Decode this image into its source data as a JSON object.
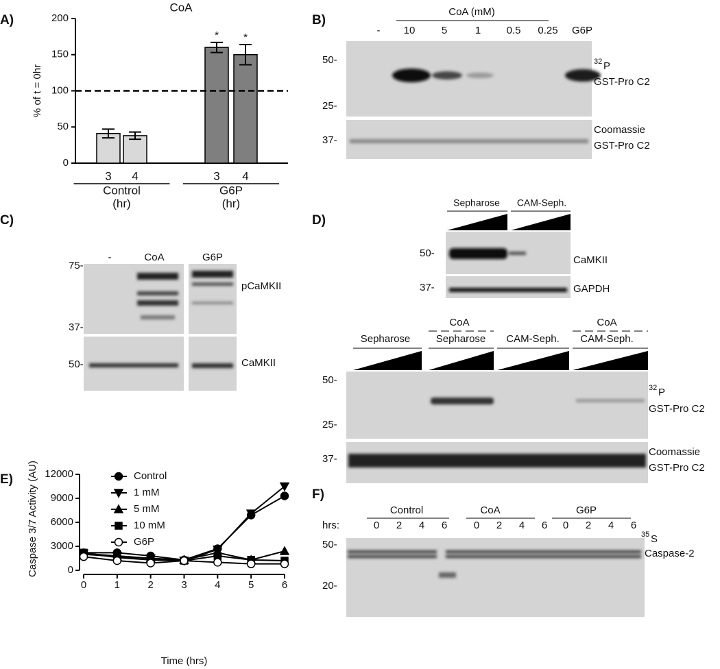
{
  "chart_data": [
    {
      "type": "bar",
      "panel": "A)",
      "title": "CoA",
      "y_label": "% of t = 0hr",
      "categories": [
        "3",
        "4",
        "3",
        "4"
      ],
      "groups": [
        {
          "name": "Control",
          "unit": "(hr)"
        },
        {
          "name": "G6P",
          "unit": "(hr)"
        }
      ],
      "values": [
        41,
        38,
        160,
        150
      ],
      "errors": [
        6,
        5,
        7,
        14
      ],
      "significance": [
        null,
        null,
        "*",
        "*"
      ],
      "colors": [
        "#d9d9d9",
        "#d9d9d9",
        "#7f7f7f",
        "#7f7f7f"
      ],
      "reference_line": 100,
      "ylim": [
        0,
        200
      ],
      "yticks": [
        0,
        50,
        100,
        150,
        200
      ]
    },
    {
      "type": "line",
      "panel": "E)",
      "x_label": "Time (hrs)",
      "y_label": "Caspase 3/7 Activity (AU)",
      "x": [
        0,
        1,
        2,
        3,
        4,
        5,
        6
      ],
      "series": [
        {
          "name": "Control",
          "color": "#000000",
          "marker": "circle",
          "values": [
            2200,
            2200,
            1800,
            1300,
            2700,
            6900,
            9300
          ]
        },
        {
          "name": "1 mM",
          "color": "#000000",
          "marker": "triangle-down",
          "values": [
            2100,
            1800,
            1500,
            1200,
            2600,
            7100,
            10500
          ]
        },
        {
          "name": "5 mM",
          "color": "#000000",
          "marker": "triangle-up",
          "values": [
            2000,
            1700,
            1500,
            1300,
            2200,
            1300,
            2400
          ]
        },
        {
          "name": "10 mM",
          "color": "#000000",
          "marker": "square",
          "values": [
            2200,
            1600,
            1300,
            1200,
            1800,
            1300,
            1200
          ]
        },
        {
          "name": "G6P",
          "color": "#000000",
          "marker": "open-circle",
          "values": [
            1700,
            1200,
            900,
            1200,
            1000,
            800,
            800
          ]
        }
      ],
      "xlim": [
        0,
        6
      ],
      "xticks": [
        0,
        1,
        2,
        3,
        4,
        5,
        6
      ],
      "ylim": [
        0,
        12000
      ],
      "yticks": [
        0,
        3000,
        6000,
        9000,
        12000
      ]
    }
  ],
  "panel_b": {
    "label": "B)",
    "header": "CoA (mM)",
    "lanes": [
      "-",
      "10",
      "5",
      "1",
      "0.5",
      "0.25",
      "G6P"
    ],
    "markers": [
      "50-",
      "25-",
      "37-"
    ],
    "isotope": "32",
    "element": "P",
    "target": "GST-Pro C2",
    "stain": "Coomassie",
    "stain_target": "GST-Pro C2"
  },
  "panel_c": {
    "label": "C)",
    "lanes": [
      "-",
      "CoA",
      "G6P"
    ],
    "markers": [
      "75-",
      "37-",
      "50-"
    ],
    "top_label": "pCaMKII",
    "bottom_label": "CaMKII"
  },
  "panel_d": {
    "label": "D)",
    "top_headers": [
      "Sepharose",
      "CAM-Seph."
    ],
    "top_markers": [
      "50-",
      "37-"
    ],
    "top_labels": [
      "CaMKII",
      "GAPDH"
    ],
    "treatment": [
      "CoA",
      "CoA"
    ],
    "bottom_headers": [
      "Sepharose",
      "Sepharose",
      "CAM-Seph.",
      "CAM-Seph."
    ],
    "bottom_markers": [
      "50-",
      "25-",
      "37-"
    ],
    "isotope": "32",
    "element": "P",
    "target": "GST-Pro C2",
    "stain": "Coomassie",
    "stain_target": "GST-Pro C2"
  },
  "panel_f": {
    "label": "F)",
    "groups": [
      "Control",
      "CoA",
      "G6P"
    ],
    "hrs_label": "hrs:",
    "hours": [
      "0",
      "2",
      "4",
      "6"
    ],
    "markers": [
      "50-",
      "20-"
    ],
    "isotope": "35",
    "element": "S",
    "target": "Caspase-2"
  }
}
